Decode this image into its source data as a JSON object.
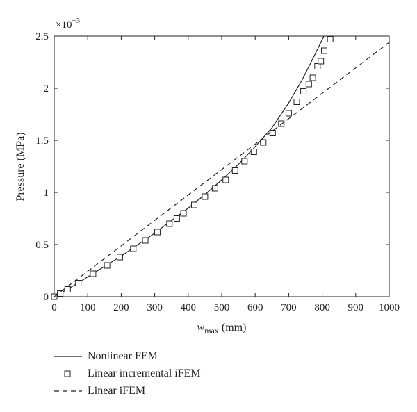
{
  "chart_data": {
    "type": "line",
    "x_label_base": "w",
    "x_label_sub": "max",
    "x_label_unit": " (mm)",
    "ylabel": "Pressure (MPa)",
    "y_multiplier_text": "×10",
    "y_multiplier_exp": "−3",
    "xlim": [
      0,
      1000
    ],
    "ylim": [
      0,
      2.5
    ],
    "x_ticks": [
      0,
      100,
      200,
      300,
      400,
      500,
      600,
      700,
      800,
      900,
      1000
    ],
    "x_tick_labels": [
      "0",
      "100",
      "200",
      "300",
      "400",
      "500",
      "600",
      "700",
      "800",
      "900",
      "1000"
    ],
    "y_ticks": [
      0,
      0.5,
      1,
      1.5,
      2,
      2.5
    ],
    "y_tick_labels": [
      "0",
      "0.5",
      "1",
      "1.5",
      "2",
      "2.5"
    ],
    "grid": false,
    "legend_position": "below",
    "series": [
      {
        "name": "Nonlinear FEM",
        "style": "solid",
        "x": [
          0,
          50,
          100,
          150,
          200,
          250,
          300,
          350,
          400,
          450,
          500,
          550,
          600,
          650,
          700,
          740,
          770,
          790,
          805
        ],
        "y": [
          0,
          0.09,
          0.19,
          0.29,
          0.39,
          0.5,
          0.61,
          0.73,
          0.85,
          0.98,
          1.12,
          1.27,
          1.44,
          1.62,
          1.86,
          2.08,
          2.27,
          2.4,
          2.5
        ]
      },
      {
        "name": "Linear incremental iFEM",
        "style": "square-markers",
        "x": [
          0,
          18,
          40,
          72,
          116,
          158,
          196,
          236,
          272,
          308,
          344,
          366,
          386,
          418,
          450,
          480,
          512,
          540,
          568,
          596,
          624,
          652,
          678,
          700,
          724,
          744,
          760,
          772,
          786,
          796,
          806,
          824
        ],
        "y": [
          0,
          0.03,
          0.07,
          0.13,
          0.22,
          0.3,
          0.38,
          0.46,
          0.54,
          0.62,
          0.7,
          0.75,
          0.8,
          0.88,
          0.96,
          1.04,
          1.12,
          1.21,
          1.3,
          1.39,
          1.48,
          1.57,
          1.66,
          1.76,
          1.87,
          1.97,
          2.04,
          2.1,
          2.21,
          2.26,
          2.36,
          2.47
        ]
      },
      {
        "name": "Linear iFEM",
        "style": "dashed",
        "x": [
          0,
          1000
        ],
        "y": [
          0,
          2.44
        ]
      }
    ]
  }
}
